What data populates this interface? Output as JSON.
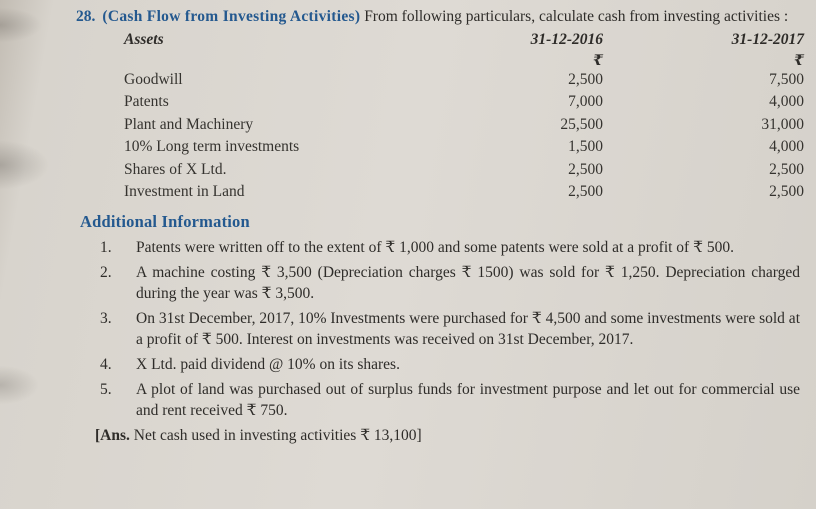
{
  "problem": {
    "number": "28.",
    "title": "(Cash Flow from Investing Activities)",
    "intro": "From following particulars, calculate cash from investing activities :"
  },
  "table": {
    "columns": [
      "Assets",
      "31-12-2016",
      "31-12-2017"
    ],
    "currency_symbol": "₹",
    "rows": [
      {
        "name": "Goodwill",
        "y2016": "2,500",
        "y2017": "7,500"
      },
      {
        "name": "Patents",
        "y2016": "7,000",
        "y2017": "4,000"
      },
      {
        "name": "Plant and Machinery",
        "y2016": "25,500",
        "y2017": "31,000"
      },
      {
        "name": "10% Long term investments",
        "y2016": "1,500",
        "y2017": "4,000"
      },
      {
        "name": "Shares of X Ltd.",
        "y2016": "2,500",
        "y2017": "2,500"
      },
      {
        "name": "Investment in Land",
        "y2016": "2,500",
        "y2017": "2,500"
      }
    ]
  },
  "additional_info": {
    "heading": "Additional Information",
    "items": [
      {
        "number": "1.",
        "text": "Patents were written off to the extent of ₹ 1,000 and some patents were sold at a profit of ₹ 500."
      },
      {
        "number": "2.",
        "text": "A machine costing ₹ 3,500 (Depreciation charges ₹ 1500) was sold for ₹ 1,250. Depreciation charged during the year was ₹ 3,500."
      },
      {
        "number": "3.",
        "text": "On 31st December, 2017, 10% Investments were purchased for ₹ 4,500 and some investments were sold at a profit of ₹ 500. Interest on investments was received on 31st December, 2017."
      },
      {
        "number": "4.",
        "text": "X Ltd. paid dividend @ 10% on its shares."
      },
      {
        "number": "5.",
        "text": "A plot of land was purchased out of surplus funds for investment purpose and let out for commercial use and rent received ₹ 750."
      }
    ]
  },
  "answer": {
    "prefix": "[Ans.",
    "text": "Net cash used in investing activities ₹ 13,100]"
  },
  "colors": {
    "accent_blue": "#24598f",
    "paper_background": "#dedad4",
    "text": "#2e2c29"
  }
}
